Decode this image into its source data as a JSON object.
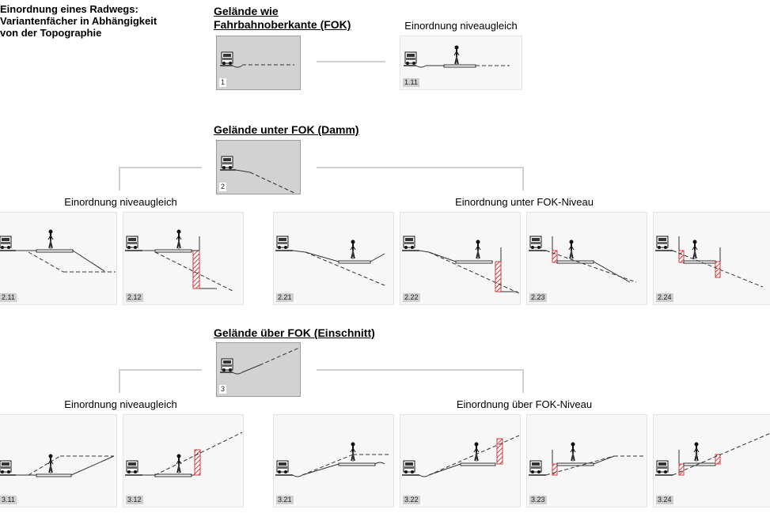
{
  "title": "Einordnung eines Radwegs:\nVariantenfächer in Abhängigkeit\nvon der Topographie",
  "sections": {
    "s1": {
      "heading": "Gelände wie\nFahrbahnoberkante (FOK)",
      "label": "1"
    },
    "s2": {
      "heading": "Gelände unter FOK (Damm)",
      "label": "2"
    },
    "s3": {
      "heading": "Gelände über FOK (Einschnitt)",
      "label": "3"
    }
  },
  "captions": {
    "c1": "Einordnung niveaugleich",
    "c2a": "Einordnung niveaugleich",
    "c2b": "Einordnung unter FOK-Niveau",
    "c3a": "Einordnung niveaugleich",
    "c3b": "Einordnung über FOK-Niveau"
  },
  "variants": {
    "v1_11": "1.11",
    "v2_11": "2.11",
    "v2_12": "2.12",
    "v2_21": "2.21",
    "v2_22": "2.22",
    "v2_23": "2.23",
    "v2_24": "2.24",
    "v3_11": "3.11",
    "v3_12": "3.12",
    "v3_21": "3.21",
    "v3_22": "3.22",
    "v3_23": "3.23",
    "v3_24": "3.24"
  },
  "colors": {
    "hatch": "#d43a3a",
    "line": "#333333",
    "panel_grey": "#d2d2d2",
    "connector": "#d0d0d0"
  }
}
